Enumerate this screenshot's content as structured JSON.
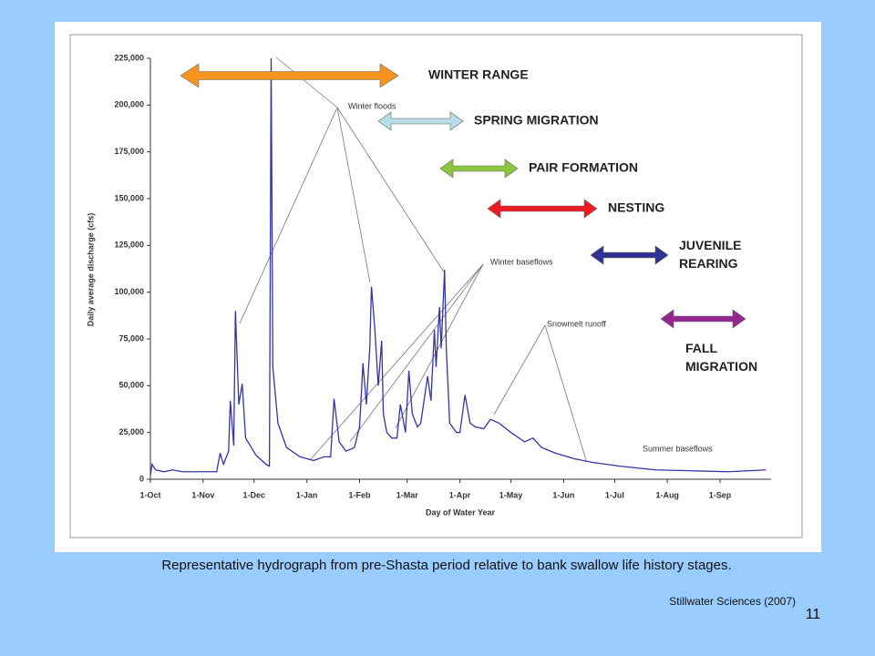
{
  "chart_data": {
    "type": "line",
    "ylabel": "Daily average discharge (cfs)",
    "xlabel": "Day of Water Year",
    "xlim": [
      0,
      365
    ],
    "xticks": [
      {
        "value": 0,
        "label": "1-Oct"
      },
      {
        "value": 31,
        "label": "1-Nov"
      },
      {
        "value": 61,
        "label": "1-Dec"
      },
      {
        "value": 92,
        "label": "1-Jan"
      },
      {
        "value": 123,
        "label": "1-Feb"
      },
      {
        "value": 151,
        "label": "1-Mar"
      },
      {
        "value": 182,
        "label": "1-Apr"
      },
      {
        "value": 212,
        "label": "1-May"
      },
      {
        "value": 243,
        "label": "1-Jun"
      },
      {
        "value": 273,
        "label": "1-Jul"
      },
      {
        "value": 304,
        "label": "1-Aug"
      },
      {
        "value": 335,
        "label": "1-Sep"
      }
    ],
    "ylim": [
      0,
      225000
    ],
    "yticks": [
      0,
      {
        "value": 25000,
        "label": "25,000"
      },
      {
        "value": 50000,
        "label": "50,000"
      },
      {
        "value": 75000,
        "label": "75,000"
      },
      {
        "value": 100000,
        "label": "100,000"
      },
      {
        "value": 125000,
        "label": "125,000"
      },
      {
        "value": 150000,
        "label": "150,000"
      },
      {
        "value": 175000,
        "label": "175,000"
      },
      {
        "value": 200000,
        "label": "200,000"
      },
      {
        "value": 225000,
        "label": "225,000"
      }
    ],
    "color": "#3333aa",
    "x": [
      0,
      1,
      3,
      8,
      13,
      19,
      39,
      41,
      43,
      46,
      47,
      49,
      50,
      52,
      54,
      56,
      62,
      68,
      70,
      71,
      72,
      75,
      80,
      88,
      96,
      102,
      106,
      108,
      111,
      115,
      120,
      123,
      125,
      127,
      129,
      130,
      132,
      134,
      136,
      137,
      139,
      142,
      145,
      147,
      150,
      152,
      154,
      157,
      159,
      163,
      165,
      167,
      168,
      170,
      171,
      173,
      174,
      176,
      180,
      182,
      185,
      188,
      191,
      196,
      200,
      205,
      212,
      220,
      225,
      230,
      238,
      249,
      260,
      276,
      297,
      319,
      340,
      362
    ],
    "values": [
      2000,
      8000,
      5000,
      4000,
      5000,
      4000,
      4000,
      14000,
      8000,
      15000,
      42000,
      18000,
      90000,
      40000,
      51000,
      22000,
      13000,
      8000,
      7000,
      225000,
      60000,
      30000,
      17000,
      12000,
      10000,
      12000,
      12000,
      43000,
      20000,
      15000,
      17000,
      28000,
      62000,
      40000,
      70000,
      103000,
      80000,
      50000,
      74000,
      35000,
      25000,
      22000,
      22000,
      40000,
      25000,
      58000,
      35000,
      28000,
      30000,
      55000,
      42000,
      80000,
      60000,
      92000,
      70000,
      112000,
      70000,
      30000,
      25000,
      25000,
      45000,
      30000,
      28000,
      27000,
      32000,
      30000,
      25000,
      20000,
      22000,
      17000,
      14000,
      11000,
      9000,
      7000,
      5000,
      4500,
      4000,
      5000
    ],
    "annotations": [
      "Winter floods",
      "Winter baseflows",
      "Snowmelt runoff",
      "Summer baseflows"
    ],
    "stages": [
      {
        "label": "WINTER RANGE",
        "color": "#f7941d"
      },
      {
        "label": "SPRING MIGRATION",
        "color": "#b7dde8"
      },
      {
        "label": "PAIR FORMATION",
        "color": "#8cc63f"
      },
      {
        "label": "NESTING",
        "color": "#ed1c24"
      },
      {
        "label": "JUVENILE REARING",
        "color": "#2e3192"
      },
      {
        "label": "FALL MIGRATION",
        "color": "#92278f"
      }
    ]
  },
  "caption": "Representative hydrograph from pre-Shasta period relative to bank swallow life history stages.",
  "source": "Stillwater Sciences (2007)",
  "page_number": "11"
}
